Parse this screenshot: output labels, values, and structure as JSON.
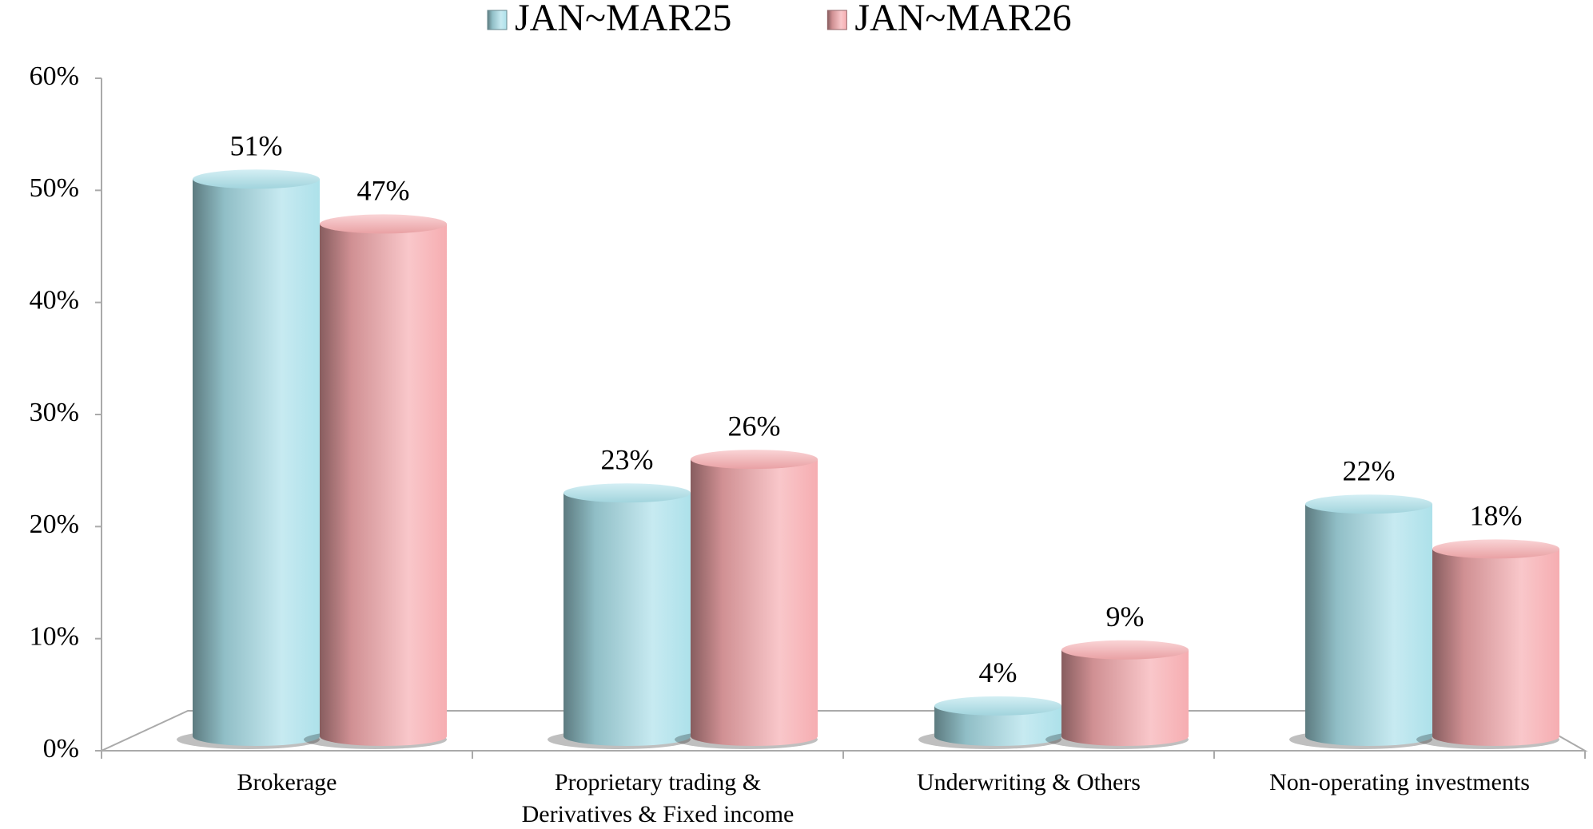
{
  "chart_data": {
    "type": "bar",
    "categories": [
      "Brokerage",
      "Proprietary trading & Derivatives & Fixed income",
      "Underwriting & Others",
      "Non-operating investments"
    ],
    "series": [
      {
        "name": "JAN~MAR25",
        "color": "#a9dfe9",
        "values": [
          51,
          23,
          4,
          22
        ],
        "value_labels": [
          "51%",
          "23%",
          "4%",
          "22%"
        ]
      },
      {
        "name": "JAN~MAR26",
        "color": "#f5a9ad",
        "values": [
          47,
          26,
          9,
          18
        ],
        "value_labels": [
          "47%",
          "26%",
          "9%",
          "18%"
        ]
      }
    ],
    "ylim": [
      0,
      60
    ],
    "yticks": [
      {
        "value": 0,
        "label": "0%"
      },
      {
        "value": 10,
        "label": "10%"
      },
      {
        "value": 20,
        "label": "20%"
      },
      {
        "value": 30,
        "label": "30%"
      },
      {
        "value": 40,
        "label": "40%"
      },
      {
        "value": 50,
        "label": "50%"
      },
      {
        "value": 60,
        "label": "60%"
      }
    ],
    "legend": "top"
  }
}
